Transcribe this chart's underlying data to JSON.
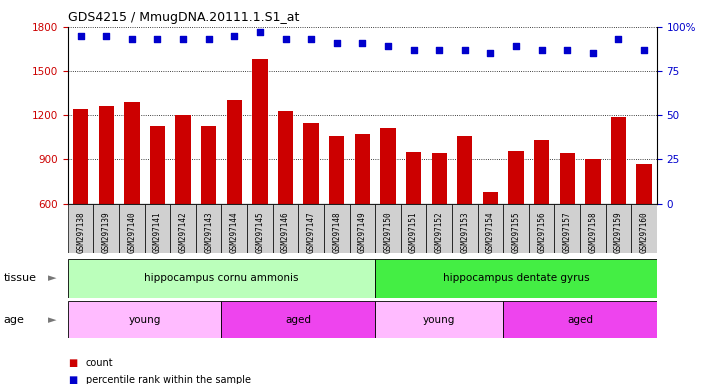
{
  "title": "GDS4215 / MmugDNA.20111.1.S1_at",
  "samples": [
    "GSM297138",
    "GSM297139",
    "GSM297140",
    "GSM297141",
    "GSM297142",
    "GSM297143",
    "GSM297144",
    "GSM297145",
    "GSM297146",
    "GSM297147",
    "GSM297148",
    "GSM297149",
    "GSM297150",
    "GSM297151",
    "GSM297152",
    "GSM297153",
    "GSM297154",
    "GSM297155",
    "GSM297156",
    "GSM297157",
    "GSM297158",
    "GSM297159",
    "GSM297160"
  ],
  "counts": [
    1240,
    1260,
    1290,
    1130,
    1200,
    1130,
    1300,
    1580,
    1230,
    1150,
    1060,
    1070,
    1110,
    950,
    940,
    1060,
    680,
    960,
    1030,
    940,
    900,
    1190,
    870
  ],
  "percentiles": [
    95,
    95,
    93,
    93,
    93,
    93,
    95,
    97,
    93,
    93,
    91,
    91,
    89,
    87,
    87,
    87,
    85,
    89,
    87,
    87,
    85,
    93,
    87
  ],
  "ylim_left": [
    600,
    1800
  ],
  "ylim_right": [
    0,
    100
  ],
  "yticks_left": [
    600,
    900,
    1200,
    1500,
    1800
  ],
  "yticks_right": [
    0,
    25,
    50,
    75,
    100
  ],
  "bar_color": "#cc0000",
  "dot_color": "#0000cc",
  "grid_color": "#000000",
  "bg_color": "#ffffff",
  "tick_box_color": "#d0d0d0",
  "tissue_segments": [
    {
      "text": "hippocampus cornu ammonis",
      "start": 0,
      "end": 12,
      "color": "#bbffbb"
    },
    {
      "text": "hippocampus dentate gyrus",
      "start": 12,
      "end": 23,
      "color": "#44ee44"
    }
  ],
  "age_segments": [
    {
      "text": "young",
      "start": 0,
      "end": 6,
      "color": "#ffbbff"
    },
    {
      "text": "aged",
      "start": 6,
      "end": 12,
      "color": "#ee44ee"
    },
    {
      "text": "young",
      "start": 12,
      "end": 17,
      "color": "#ffbbff"
    },
    {
      "text": "aged",
      "start": 17,
      "end": 23,
      "color": "#ee44ee"
    }
  ]
}
